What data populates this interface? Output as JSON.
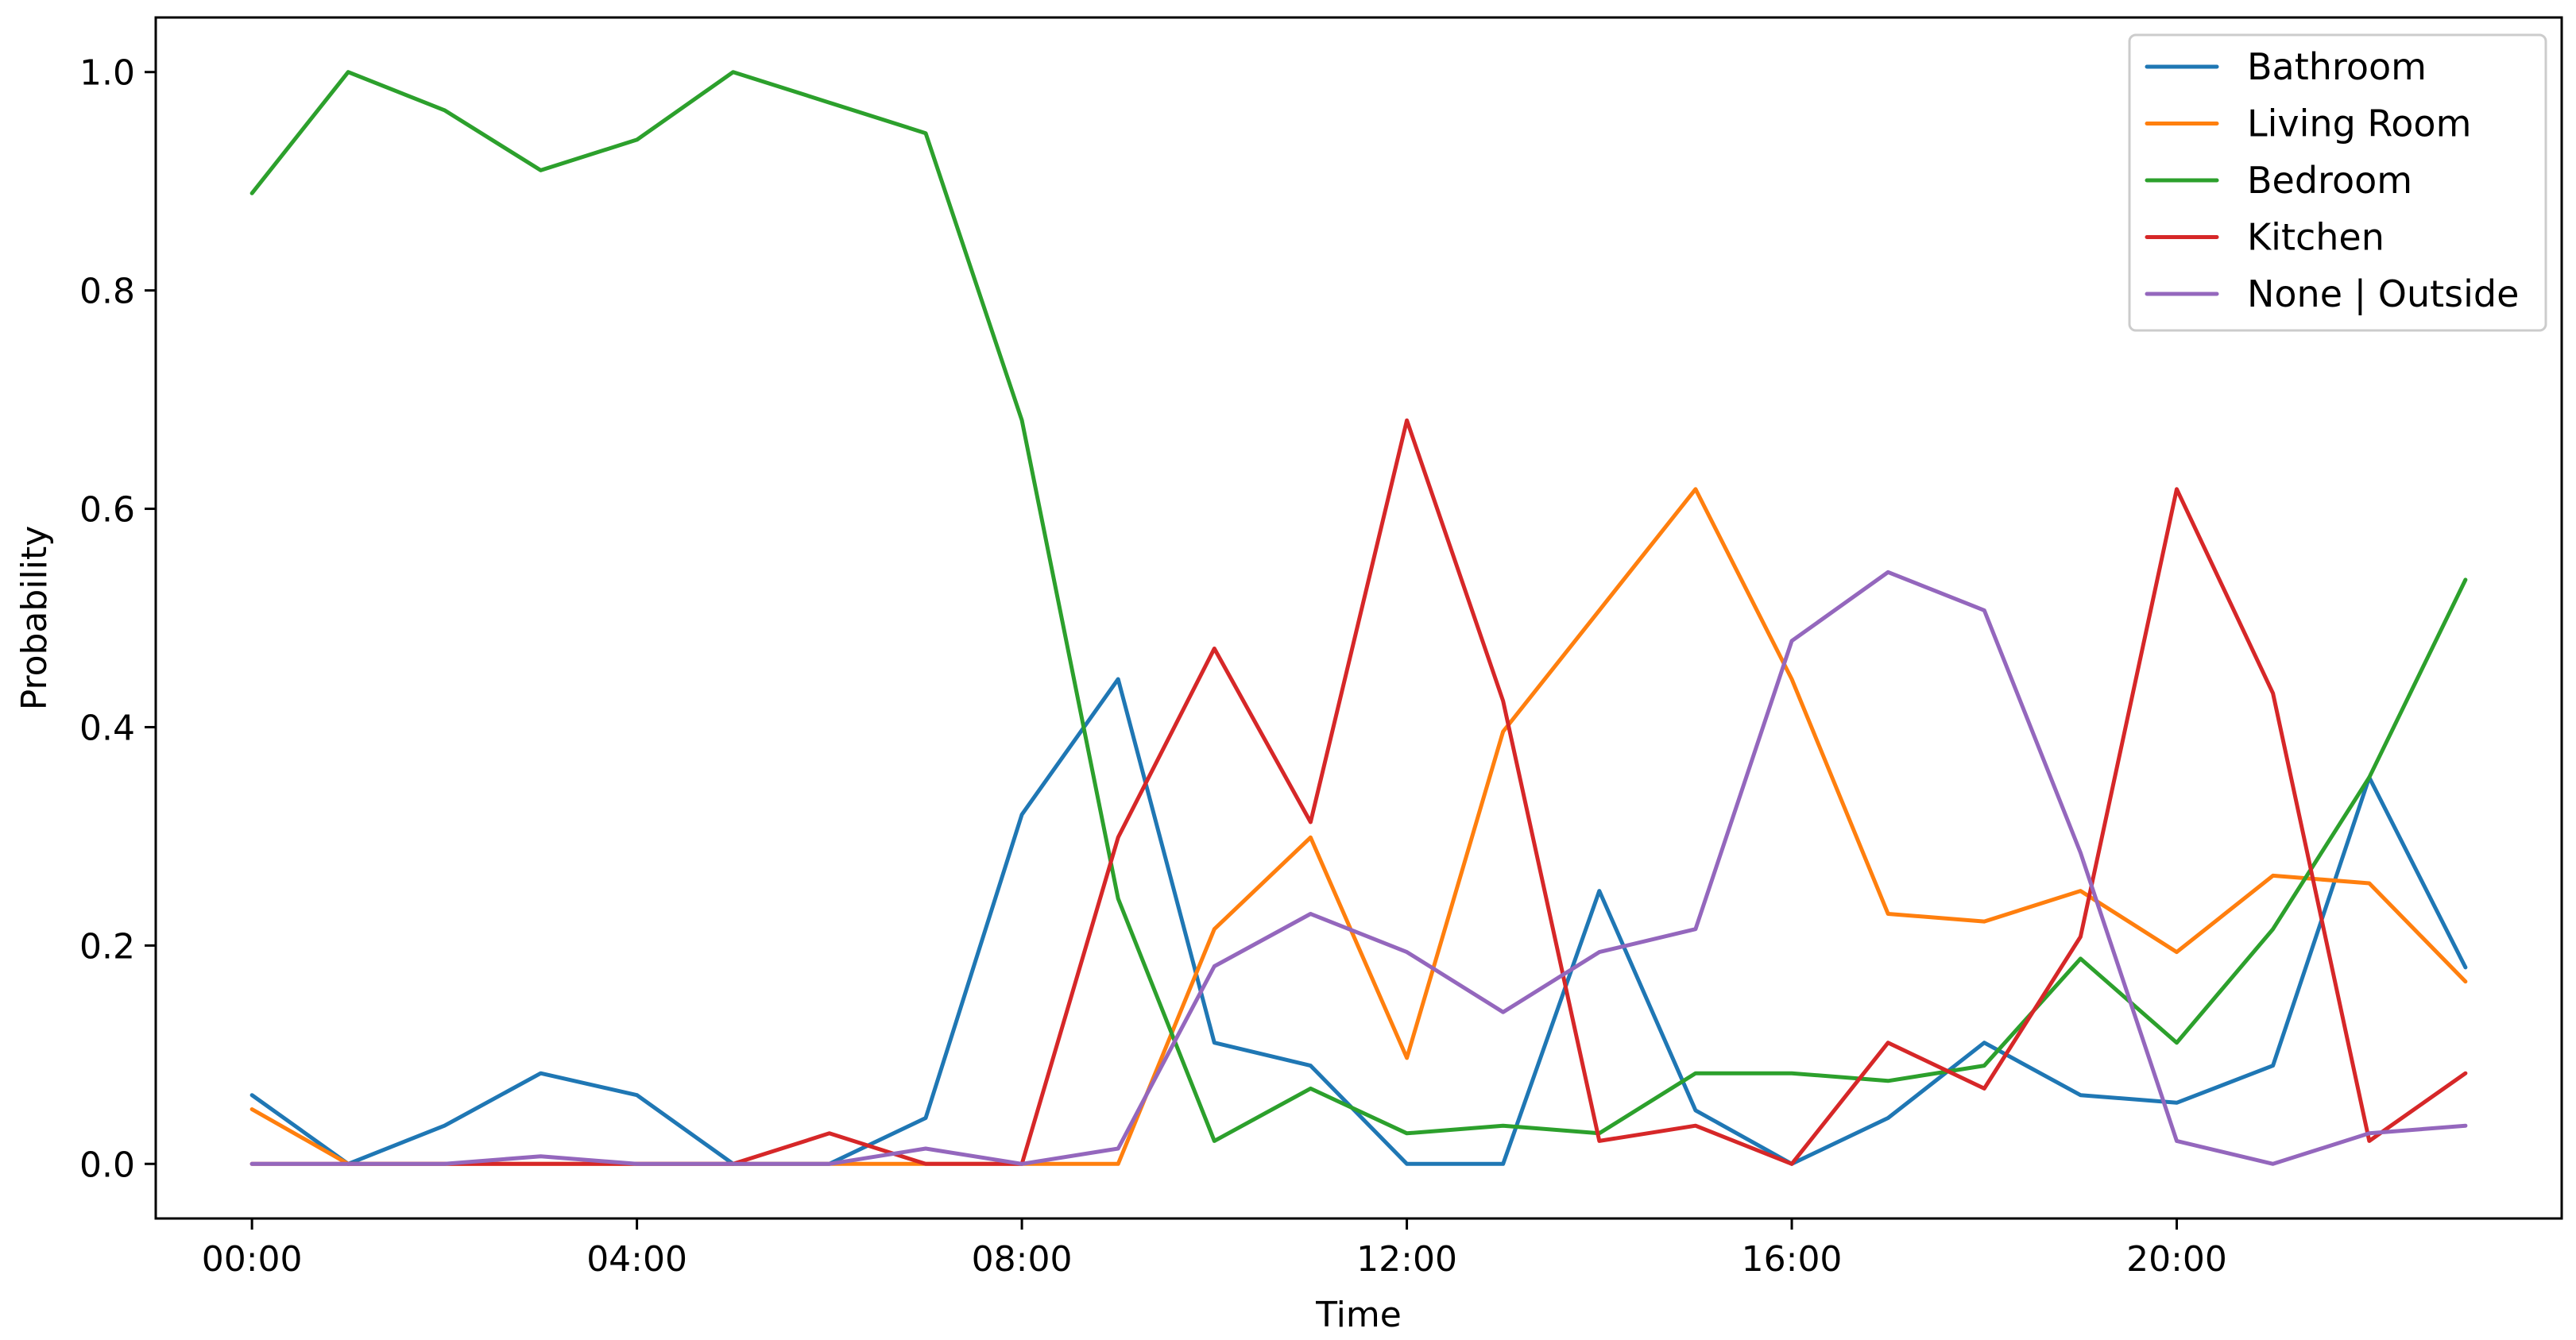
{
  "chart_data": {
    "type": "line",
    "title": "",
    "xlabel": "Time",
    "ylabel": "Probability",
    "x": [
      0,
      1,
      2,
      3,
      4,
      5,
      6,
      7,
      8,
      9,
      10,
      11,
      12,
      13,
      14,
      15,
      16,
      17,
      18,
      19,
      20,
      21,
      22,
      23
    ],
    "x_unit": "hour",
    "xlim": [
      -1,
      24
    ],
    "ylim": [
      -0.05,
      1.05
    ],
    "xticks": [
      {
        "value": 0,
        "label": "00:00"
      },
      {
        "value": 4,
        "label": "04:00"
      },
      {
        "value": 8,
        "label": "08:00"
      },
      {
        "value": 12,
        "label": "12:00"
      },
      {
        "value": 16,
        "label": "16:00"
      },
      {
        "value": 20,
        "label": "20:00"
      }
    ],
    "yticks": [
      {
        "value": 0.0,
        "label": "0.0"
      },
      {
        "value": 0.2,
        "label": "0.2"
      },
      {
        "value": 0.4,
        "label": "0.4"
      },
      {
        "value": 0.6,
        "label": "0.6"
      },
      {
        "value": 0.8,
        "label": "0.8"
      },
      {
        "value": 1.0,
        "label": "1.0"
      }
    ],
    "grid": false,
    "legend_position": "top-right",
    "series": [
      {
        "name": "Bathroom",
        "color": "#1f77b4",
        "values": [
          0.063,
          0.0,
          0.035,
          0.083,
          0.063,
          0.0,
          0.0,
          0.042,
          0.32,
          0.444,
          0.111,
          0.09,
          0.0,
          0.0,
          0.25,
          0.049,
          0.0,
          0.042,
          0.111,
          0.063,
          0.056,
          0.09,
          0.354,
          0.18
        ]
      },
      {
        "name": "Living Room",
        "color": "#ff7f0e",
        "values": [
          0.05,
          0.0,
          0.0,
          0.0,
          0.0,
          0.0,
          0.0,
          0.0,
          0.0,
          0.0,
          0.215,
          0.299,
          0.097,
          0.396,
          0.507,
          0.618,
          0.444,
          0.229,
          0.222,
          0.25,
          0.194,
          0.264,
          0.257,
          0.167
        ]
      },
      {
        "name": "Bedroom",
        "color": "#2ca02c",
        "values": [
          0.889,
          1.0,
          0.965,
          0.91,
          0.938,
          1.0,
          0.972,
          0.944,
          0.681,
          0.243,
          0.021,
          0.069,
          0.028,
          0.035,
          0.028,
          0.083,
          0.083,
          0.076,
          0.09,
          0.188,
          0.111,
          0.215,
          0.354,
          0.535
        ]
      },
      {
        "name": "Kitchen",
        "color": "#d62728",
        "values": [
          0.0,
          0.0,
          0.0,
          0.0,
          0.0,
          0.0,
          0.028,
          0.0,
          0.0,
          0.299,
          0.472,
          0.313,
          0.681,
          0.424,
          0.021,
          0.035,
          0.0,
          0.111,
          0.069,
          0.208,
          0.618,
          0.431,
          0.021,
          0.083
        ]
      },
      {
        "name": "None | Outside",
        "color": "#9467bd",
        "values": [
          0.0,
          0.0,
          0.0,
          0.007,
          0.0,
          0.0,
          0.0,
          0.014,
          0.0,
          0.014,
          0.181,
          0.229,
          0.194,
          0.139,
          0.194,
          0.215,
          0.479,
          0.542,
          0.507,
          0.285,
          0.021,
          0.0,
          0.028,
          0.035
        ]
      }
    ]
  }
}
